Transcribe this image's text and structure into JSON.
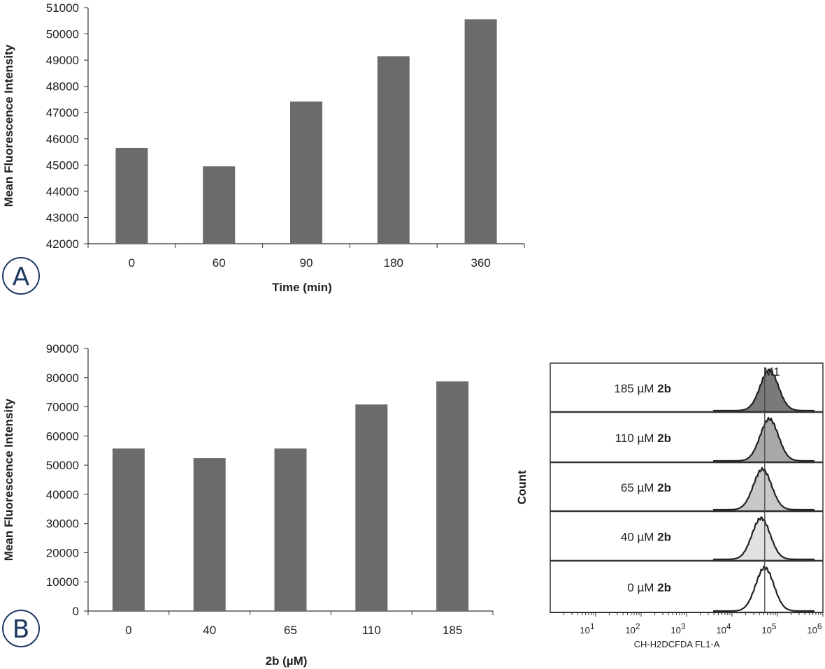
{
  "chart_data": [
    {
      "type": "bar",
      "panel_label": "A",
      "categories": [
        "0",
        "60",
        "90",
        "180",
        "360"
      ],
      "values": [
        45650,
        44950,
        47420,
        49150,
        50560
      ],
      "xlabel": "Time (min)",
      "ylabel": "Mean Fluorescence Intensity",
      "ylim": [
        42000,
        51000
      ],
      "yticks": [
        42000,
        43000,
        44000,
        45000,
        46000,
        47000,
        48000,
        49000,
        50000,
        51000
      ],
      "bar_color": "#6b6b6d",
      "grid": false
    },
    {
      "type": "bar",
      "panel_label": "B",
      "categories": [
        "0",
        "40",
        "65",
        "110",
        "185"
      ],
      "values": [
        55700,
        52400,
        55700,
        70800,
        78700
      ],
      "xlabel": "2b (µM)",
      "ylabel": "Mean Fluorescence Intensity",
      "ylim": [
        0,
        90000
      ],
      "yticks": [
        0,
        10000,
        20000,
        30000,
        40000,
        50000,
        60000,
        70000,
        80000,
        90000
      ],
      "bar_color": "#6b6b6d",
      "grid": false
    },
    {
      "type": "histogram",
      "xlabel": "CH-H2DCFDA FL1-A",
      "ylabel": "Count",
      "x_scale": "log",
      "xlim": [
        1,
        1000000
      ],
      "xtick_exponents": [
        "1",
        "2",
        "3",
        "4",
        "5",
        "6"
      ],
      "xtick_base": "10",
      "marker_label": "M1",
      "marker_log10": 4.72,
      "series": [
        {
          "label": "185 µM",
          "compound": "2b",
          "peak_log10": 4.82,
          "fill": "#7a7a7a"
        },
        {
          "label": "110 µM",
          "compound": "2b",
          "peak_log10": 4.82,
          "fill": "#a9a9a9"
        },
        {
          "label": "65 µM",
          "compound": "2b",
          "peak_log10": 4.67,
          "fill": "#c8c8c8"
        },
        {
          "label": "40 µM",
          "compound": "2b",
          "peak_log10": 4.64,
          "fill": "#e2e2e2"
        },
        {
          "label": "0 µM",
          "compound": "2b",
          "peak_log10": 4.72,
          "fill": "#ffffff"
        }
      ]
    }
  ],
  "panel_circle_color": "#1f3a5f"
}
